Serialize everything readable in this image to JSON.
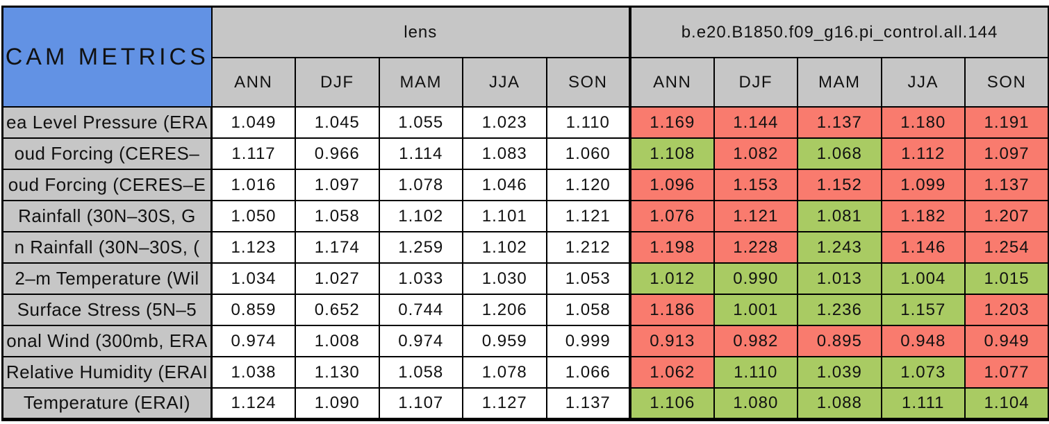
{
  "chart_data": {
    "type": "table",
    "title": "CAM METRICS",
    "group_headers": [
      "lens",
      "b.e20.B1850.f09_g16.pi_control.all.144"
    ],
    "season_columns": [
      "ANN",
      "DJF",
      "MAM",
      "JJA",
      "SON"
    ],
    "rows": [
      {
        "label": "ea Level Pressure (ERA",
        "lens": [
          "1.049",
          "1.045",
          "1.055",
          "1.023",
          "1.110"
        ],
        "control": [
          "1.169",
          "1.144",
          "1.137",
          "1.180",
          "1.191"
        ],
        "control_colors": [
          "red",
          "red",
          "red",
          "red",
          "red"
        ]
      },
      {
        "label": "oud Forcing (CERES–",
        "lens": [
          "1.117",
          "0.966",
          "1.114",
          "1.083",
          "1.060"
        ],
        "control": [
          "1.108",
          "1.082",
          "1.068",
          "1.112",
          "1.097"
        ],
        "control_colors": [
          "green",
          "red",
          "green",
          "red",
          "red"
        ]
      },
      {
        "label": "oud Forcing (CERES–E",
        "lens": [
          "1.016",
          "1.097",
          "1.078",
          "1.046",
          "1.120"
        ],
        "control": [
          "1.096",
          "1.153",
          "1.152",
          "1.099",
          "1.137"
        ],
        "control_colors": [
          "red",
          "red",
          "red",
          "red",
          "red"
        ]
      },
      {
        "label": "Rainfall (30N–30S, G",
        "lens": [
          "1.050",
          "1.058",
          "1.102",
          "1.101",
          "1.121"
        ],
        "control": [
          "1.076",
          "1.121",
          "1.081",
          "1.182",
          "1.207"
        ],
        "control_colors": [
          "red",
          "red",
          "green",
          "red",
          "red"
        ]
      },
      {
        "label": "n Rainfall (30N–30S, (",
        "lens": [
          "1.123",
          "1.174",
          "1.259",
          "1.102",
          "1.212"
        ],
        "control": [
          "1.198",
          "1.228",
          "1.243",
          "1.146",
          "1.254"
        ],
        "control_colors": [
          "red",
          "red",
          "green",
          "red",
          "red"
        ]
      },
      {
        "label": "2–m Temperature (Wil",
        "lens": [
          "1.034",
          "1.027",
          "1.033",
          "1.030",
          "1.053"
        ],
        "control": [
          "1.012",
          "0.990",
          "1.013",
          "1.004",
          "1.015"
        ],
        "control_colors": [
          "green",
          "green",
          "green",
          "green",
          "green"
        ]
      },
      {
        "label": "Surface Stress (5N–5",
        "lens": [
          "0.859",
          "0.652",
          "0.744",
          "1.206",
          "1.058"
        ],
        "control": [
          "1.186",
          "1.001",
          "1.236",
          "1.157",
          "1.203"
        ],
        "control_colors": [
          "red",
          "green",
          "green",
          "green",
          "red"
        ]
      },
      {
        "label": "onal Wind (300mb, ERA",
        "lens": [
          "0.974",
          "1.008",
          "0.974",
          "0.959",
          "0.999"
        ],
        "control": [
          "0.913",
          "0.982",
          "0.895",
          "0.948",
          "0.949"
        ],
        "control_colors": [
          "red",
          "red",
          "red",
          "red",
          "red"
        ]
      },
      {
        "label": "Relative Humidity (ERAI",
        "lens": [
          "1.038",
          "1.130",
          "1.058",
          "1.078",
          "1.066"
        ],
        "control": [
          "1.062",
          "1.110",
          "1.039",
          "1.073",
          "1.077"
        ],
        "control_colors": [
          "red",
          "green",
          "green",
          "green",
          "red"
        ]
      },
      {
        "label": "Temperature (ERAI)",
        "lens": [
          "1.124",
          "1.090",
          "1.107",
          "1.127",
          "1.137"
        ],
        "control": [
          "1.106",
          "1.080",
          "1.088",
          "1.111",
          "1.104"
        ],
        "control_colors": [
          "green",
          "green",
          "green",
          "green",
          "green"
        ]
      }
    ]
  },
  "colors": {
    "header_blue": "#6292e4",
    "cell_gray": "#c6c6c6",
    "fail_red": "#f97b6e",
    "pass_green": "#a9cb63",
    "border_black": "#000000",
    "lens_cell_white": "#ffffff"
  }
}
